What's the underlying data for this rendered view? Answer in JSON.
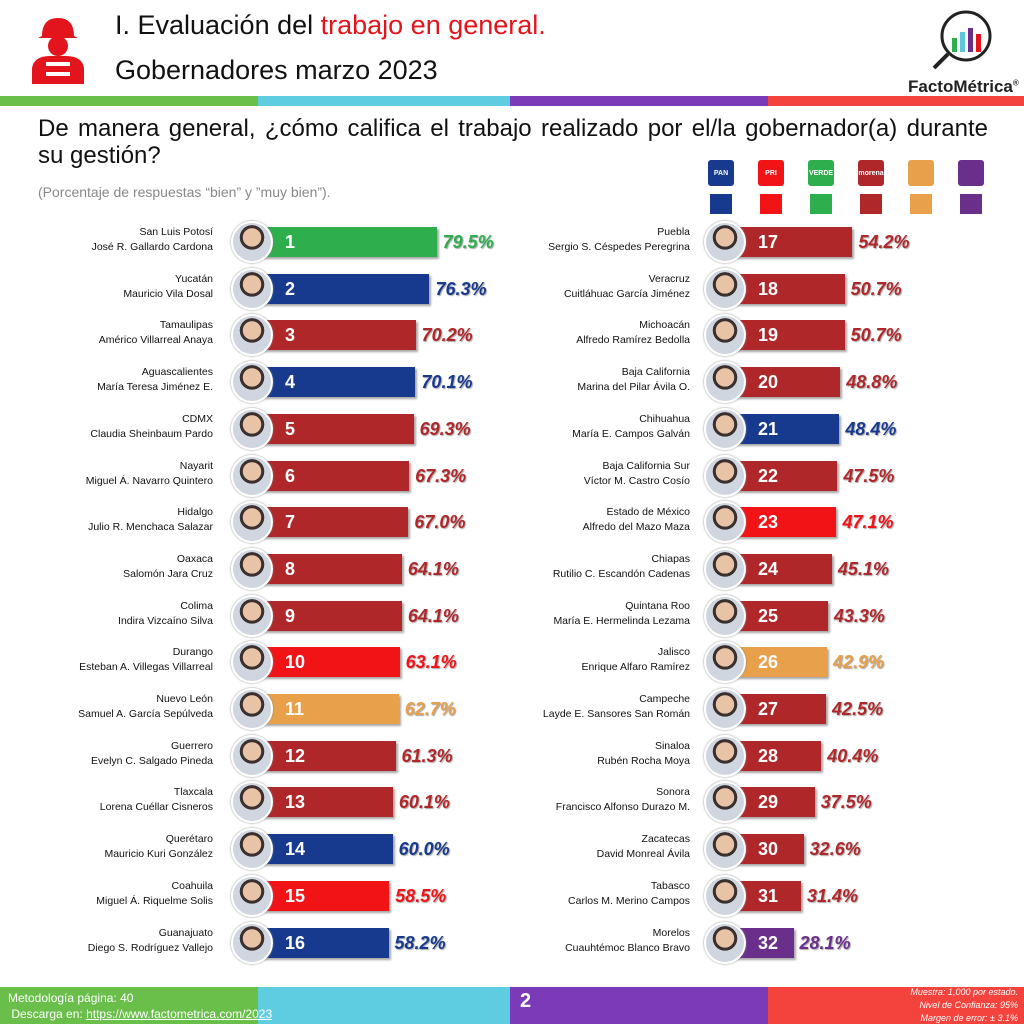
{
  "header": {
    "title_prefix": "I. Evaluación del ",
    "title_highlight": "trabajo en general.",
    "subtitle": "Gobernadores marzo 2023",
    "brand": "FactoMétrica",
    "brand_mark": "®"
  },
  "question": "De manera general, ¿cómo califica el trabajo realizado por el/la gobernador(a) durante su gestión?",
  "note": "(Porcentaje de respuestas “bien” y ”muy bien”).",
  "colors": {
    "PAN": "#173a8f",
    "PRI": "#f21317",
    "VERDE": "#2fae4e",
    "morena": "#b0272a",
    "MC": "#e8a04a",
    "PES": "#6a2f8a"
  },
  "legend": [
    {
      "party": "PAN",
      "logo": "PAN"
    },
    {
      "party": "PRI",
      "logo": "PRI"
    },
    {
      "party": "VERDE",
      "logo": "VERDE"
    },
    {
      "party": "morena",
      "logo": "morena"
    },
    {
      "party": "MC",
      "logo": ""
    },
    {
      "party": "PES",
      "logo": ""
    }
  ],
  "chart_data": {
    "type": "bar",
    "orientation": "horizontal",
    "unit": "%",
    "series": [
      {
        "rank": 1,
        "state": "San Luis Potosí",
        "name": "José R. Gallardo Cardona",
        "value": 79.5,
        "party": "VERDE"
      },
      {
        "rank": 2,
        "state": "Yucatán",
        "name": "Mauricio Vila Dosal",
        "value": 76.3,
        "party": "PAN"
      },
      {
        "rank": 3,
        "state": "Tamaulipas",
        "name": "Américo Villarreal Anaya",
        "value": 70.2,
        "party": "morena"
      },
      {
        "rank": 4,
        "state": "Aguascalientes",
        "name": "María Teresa Jiménez E.",
        "value": 70.1,
        "party": "PAN"
      },
      {
        "rank": 5,
        "state": "CDMX",
        "name": "Claudia Sheinbaum Pardo",
        "value": 69.3,
        "party": "morena"
      },
      {
        "rank": 6,
        "state": "Nayarit",
        "name": "Miguel Á. Navarro Quintero",
        "value": 67.3,
        "party": "morena"
      },
      {
        "rank": 7,
        "state": "Hidalgo",
        "name": "Julio R. Menchaca Salazar",
        "value": 67.0,
        "party": "morena"
      },
      {
        "rank": 8,
        "state": "Oaxaca",
        "name": "Salomón Jara Cruz",
        "value": 64.1,
        "party": "morena"
      },
      {
        "rank": 9,
        "state": "Colima",
        "name": "Indira Vizcaíno Silva",
        "value": 64.1,
        "party": "morena"
      },
      {
        "rank": 10,
        "state": "Durango",
        "name": "Esteban A. Villegas Villarreal",
        "value": 63.1,
        "party": "PRI"
      },
      {
        "rank": 11,
        "state": "Nuevo León",
        "name": "Samuel A. García Sepúlveda",
        "value": 62.7,
        "party": "MC"
      },
      {
        "rank": 12,
        "state": "Guerrero",
        "name": "Evelyn C. Salgado Pineda",
        "value": 61.3,
        "party": "morena"
      },
      {
        "rank": 13,
        "state": "Tlaxcala",
        "name": "Lorena Cuéllar Cisneros",
        "value": 60.1,
        "party": "morena"
      },
      {
        "rank": 14,
        "state": "Querétaro",
        "name": "Mauricio Kuri González",
        "value": 60.0,
        "party": "PAN"
      },
      {
        "rank": 15,
        "state": "Coahuila",
        "name": "Miguel Á. Riquelme Solis",
        "value": 58.5,
        "party": "PRI"
      },
      {
        "rank": 16,
        "state": "Guanajuato",
        "name": "Diego S. Rodríguez Vallejo",
        "value": 58.2,
        "party": "PAN"
      },
      {
        "rank": 17,
        "state": "Puebla",
        "name": "Sergio S. Céspedes Peregrina",
        "value": 54.2,
        "party": "morena"
      },
      {
        "rank": 18,
        "state": "Veracruz",
        "name": "Cuitláhuac García Jiménez",
        "value": 50.7,
        "party": "morena"
      },
      {
        "rank": 19,
        "state": "Michoacán",
        "name": "Alfredo Ramírez Bedolla",
        "value": 50.7,
        "party": "morena"
      },
      {
        "rank": 20,
        "state": "Baja California",
        "name": "Marina del Pilar Ávila O.",
        "value": 48.8,
        "party": "morena"
      },
      {
        "rank": 21,
        "state": "Chihuahua",
        "name": "María E. Campos Galván",
        "value": 48.4,
        "party": "PAN"
      },
      {
        "rank": 22,
        "state": "Baja California Sur",
        "name": "Víctor M. Castro Cosío",
        "value": 47.5,
        "party": "morena"
      },
      {
        "rank": 23,
        "state": "Estado de México",
        "name": "Alfredo del Mazo Maza",
        "value": 47.1,
        "party": "PRI"
      },
      {
        "rank": 24,
        "state": "Chiapas",
        "name": "Rutilio C. Escandón Cadenas",
        "value": 45.1,
        "party": "morena"
      },
      {
        "rank": 25,
        "state": "Quintana Roo",
        "name": "María E. Hermelinda Lezama",
        "value": 43.3,
        "party": "morena"
      },
      {
        "rank": 26,
        "state": "Jalisco",
        "name": "Enrique Alfaro Ramírez",
        "value": 42.9,
        "party": "MC"
      },
      {
        "rank": 27,
        "state": "Campeche",
        "name": "Layde E. Sansores San Román",
        "value": 42.5,
        "party": "morena"
      },
      {
        "rank": 28,
        "state": "Sinaloa",
        "name": "Rubén Rocha Moya",
        "value": 40.4,
        "party": "morena"
      },
      {
        "rank": 29,
        "state": "Sonora",
        "name": "Francisco Alfonso Durazo M.",
        "value": 37.5,
        "party": "morena"
      },
      {
        "rank": 30,
        "state": "Zacatecas",
        "name": "David Monreal Ávila",
        "value": 32.6,
        "party": "morena"
      },
      {
        "rank": 31,
        "state": "Tabasco",
        "name": "Carlos M. Merino Campos",
        "value": 31.4,
        "party": "morena"
      },
      {
        "rank": 32,
        "state": "Morelos",
        "name": "Cuauhtémoc Blanco Bravo",
        "value": 28.1,
        "party": "PES"
      }
    ]
  },
  "footer": {
    "methodology": "Metodología página: 40",
    "download_prefix": "Descarga en: ",
    "download_link": "https://www.factometrica.com/2023",
    "page": "2",
    "sample": "Muestra:  1,000 por estado.",
    "confidence": "Nivel de Confianza: 95%",
    "error": "Margen de error: ± 3.1%"
  }
}
